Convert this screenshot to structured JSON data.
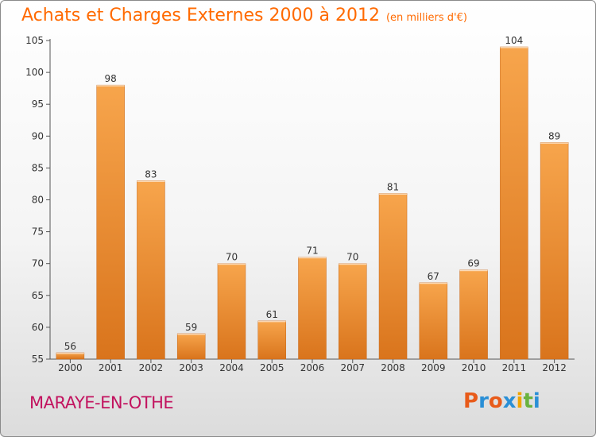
{
  "header": {
    "title": "Achats et Charges Externes 2000 à 2012",
    "subtitle": "(en milliers d'€)"
  },
  "footer": {
    "commune": "MARAYE-EN-OTHE",
    "logo": "Proxiti",
    "logo_colors": [
      "#e85b1a",
      "#2a8fd6",
      "#e85b1a",
      "#2a8fd6",
      "#f0a500",
      "#6ab23e",
      "#2a8fd6"
    ]
  },
  "colors": {
    "bar_top": "#f7a54c",
    "bar_bottom": "#d9741c",
    "accent": "#ff6a00",
    "commune": "#c2135f"
  },
  "chart_data": {
    "type": "bar",
    "title": "Achats et Charges Externes 2000 à 2012",
    "subtitle": "(en milliers d'€)",
    "categories": [
      "2000",
      "2001",
      "2002",
      "2003",
      "2004",
      "2005",
      "2006",
      "2007",
      "2008",
      "2009",
      "2010",
      "2011",
      "2012"
    ],
    "values": [
      56,
      98,
      83,
      59,
      70,
      61,
      71,
      70,
      81,
      67,
      69,
      104,
      89
    ],
    "ylim": [
      55,
      105
    ],
    "yticks": [
      55,
      60,
      65,
      70,
      75,
      80,
      85,
      90,
      95,
      100,
      105
    ],
    "grid": false,
    "xlabel": "",
    "ylabel": ""
  }
}
